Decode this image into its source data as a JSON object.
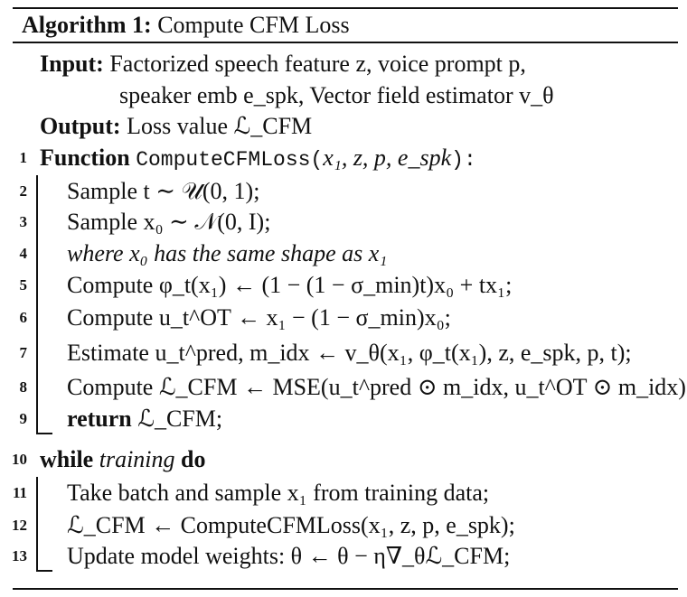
{
  "caption": {
    "label": "Algorithm 1:",
    "title": "Compute CFM Loss"
  },
  "input": {
    "label": "Input:",
    "line1": "Factorized speech feature z, voice prompt p,",
    "line2": "speaker emb e_spk, Vector field estimator v_θ"
  },
  "output": {
    "label": "Output:",
    "text": "Loss value ℒ_CFM"
  },
  "lines": [
    {
      "num": "1",
      "keyword": "Function",
      "code": "ComputeCFMLoss(",
      "args": "x₁, z, p, e_spk",
      "close": "):"
    },
    {
      "num": "2",
      "text": "Sample t ∼ 𝒰(0, 1);"
    },
    {
      "num": "3",
      "text": "Sample x₀ ∼ 𝒩(0, I);"
    },
    {
      "num": "4",
      "text": "where x₀ has the same shape as x₁"
    },
    {
      "num": "5",
      "text": "Compute φ_t(x₁) ← (1 − (1 − σ_min)t)x₀ + tx₁;"
    },
    {
      "num": "6",
      "text": "Compute u_t^OT ← x₁ − (1 − σ_min)x₀;"
    },
    {
      "num": "7",
      "text": "Estimate u_t^pred, m_idx ← v_θ(x₁, φ_t(x₁), z, e_spk, p, t);"
    },
    {
      "num": "8",
      "text": "Compute ℒ_CFM ← MSE(u_t^pred ⊙ m_idx, u_t^OT ⊙ m_idx);"
    },
    {
      "num": "9",
      "keyword": "return",
      "text": "ℒ_CFM;"
    },
    {
      "num": "10",
      "keyword": "while",
      "cond": "training",
      "keyword2": "do"
    },
    {
      "num": "11",
      "text": "Take batch and sample x₁ from training data;"
    },
    {
      "num": "12",
      "text": "ℒ_CFM ← ComputeCFMLoss(x₁, z, p, e_spk);"
    },
    {
      "num": "13",
      "text": "Update model weights: θ ← θ − η∇_θℒ_CFM;"
    }
  ]
}
